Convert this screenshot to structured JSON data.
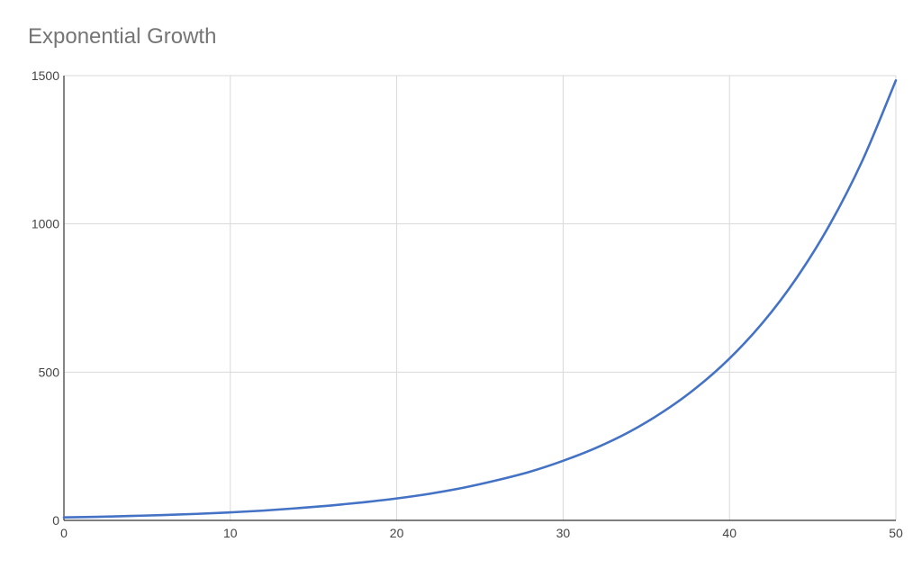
{
  "chart_data": {
    "type": "line",
    "title": "Exponential Growth",
    "xlabel": "",
    "ylabel": "",
    "xlim": [
      0,
      50
    ],
    "ylim": [
      0,
      1500
    ],
    "x_ticks": [
      "0",
      "10",
      "20",
      "30",
      "40",
      "50"
    ],
    "y_ticks": [
      "0",
      "500",
      "1000",
      "1500"
    ],
    "grid": true,
    "legend": "none",
    "series": [
      {
        "color": "#4472c4",
        "x": [
          0,
          2,
          4,
          6,
          8,
          10,
          12,
          14,
          16,
          18,
          20,
          22,
          24,
          26,
          28,
          30,
          32,
          34,
          36,
          38,
          40,
          42,
          44,
          46,
          48,
          50
        ],
        "y": [
          10,
          12,
          15,
          18,
          22,
          27,
          33,
          41,
          50,
          61,
          74,
          90,
          110,
          135,
          164,
          201,
          245,
          299,
          366,
          447,
          546,
          667,
          815,
          995,
          1215,
          1484
        ]
      }
    ]
  }
}
